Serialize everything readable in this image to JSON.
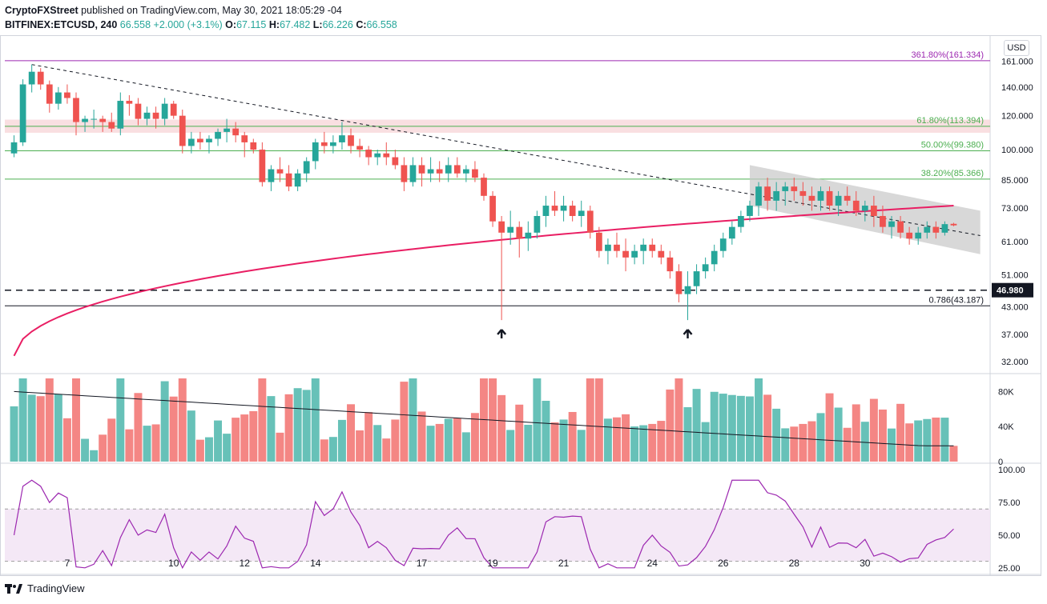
{
  "header": {
    "publisher": "CryptoFXStreet",
    "published_text": " published on TradingView.com, May 30, 2021 18:05:29 -04",
    "symbol": "BITFINEX:ETCUSD, 240",
    "last": "66.558",
    "change": "+2.000 (+3.1%)",
    "o_label": "O:",
    "o": "67.115",
    "h_label": "H:",
    "h": "67.482",
    "l_label": "L:",
    "l": "66.226",
    "c_label": "C:",
    "c": "66.558"
  },
  "currency_label": "USD",
  "footer": {
    "brand": "TradingView"
  },
  "colors": {
    "up": "#26a69a",
    "down": "#ef5350",
    "sma": "#e91e63",
    "fib_purple": "#9c27b0",
    "fib_green": "#4caf50",
    "rsi": "#9c27b0",
    "channel": "#c8c8c8",
    "volume_ma": "#131722"
  },
  "chart_data": {
    "type": "candlestick",
    "y_axis_scale": "log",
    "price_ticks": [
      "161.000",
      "140.000",
      "120.000",
      "100.000",
      "85.000",
      "73.000",
      "61.000",
      "51.000",
      "43.000",
      "37.000",
      "32.000"
    ],
    "x_tick_labels": [
      "7",
      "10",
      "12",
      "14",
      "17",
      "19",
      "21",
      "24",
      "26",
      "28",
      "30"
    ],
    "fib_levels": [
      {
        "label": "361.80%(161.334)",
        "value": 161.334,
        "color": "#9c27b0"
      },
      {
        "label": "61.80%(113.394)",
        "value": 113.394,
        "color": "#4caf50",
        "band": [
          109.5,
          117.5
        ]
      },
      {
        "label": "50.00%(99.380)",
        "value": 99.38,
        "color": "#4caf50"
      },
      {
        "label": "38.20%(85.366)",
        "value": 85.366,
        "color": "#4caf50"
      },
      {
        "label": "0.786(43.187)",
        "value": 43.187,
        "color": "#131722"
      }
    ],
    "support_level": {
      "value": 46.98,
      "label": "46.980"
    },
    "candles": [
      [
        98,
        108,
        96,
        104
      ],
      [
        104,
        146,
        102,
        142
      ],
      [
        142,
        158,
        136,
        152
      ],
      [
        152,
        155,
        138,
        142
      ],
      [
        142,
        145,
        122,
        128
      ],
      [
        128,
        140,
        124,
        136
      ],
      [
        136,
        142,
        128,
        132
      ],
      [
        132,
        136,
        108,
        116
      ],
      [
        116,
        120,
        110,
        118
      ],
      [
        118,
        124,
        112,
        118
      ],
      [
        118,
        120,
        110,
        116
      ],
      [
        116,
        122,
        110,
        112
      ],
      [
        112,
        136,
        108,
        130
      ],
      [
        130,
        134,
        120,
        128
      ],
      [
        128,
        132,
        114,
        118
      ],
      [
        118,
        126,
        114,
        122
      ],
      [
        122,
        126,
        112,
        118
      ],
      [
        118,
        132,
        114,
        128
      ],
      [
        128,
        130,
        118,
        120
      ],
      [
        120,
        124,
        98,
        102
      ],
      [
        102,
        110,
        98,
        106
      ],
      [
        106,
        110,
        100,
        104
      ],
      [
        104,
        108,
        98,
        106
      ],
      [
        106,
        112,
        102,
        110
      ],
      [
        110,
        118,
        104,
        112
      ],
      [
        112,
        116,
        104,
        108
      ],
      [
        108,
        110,
        96,
        104
      ],
      [
        104,
        106,
        98,
        100
      ],
      [
        100,
        104,
        82,
        84
      ],
      [
        84,
        92,
        80,
        90
      ],
      [
        90,
        96,
        84,
        88
      ],
      [
        88,
        92,
        80,
        82
      ],
      [
        82,
        90,
        80,
        88
      ],
      [
        88,
        96,
        84,
        94
      ],
      [
        94,
        106,
        90,
        104
      ],
      [
        104,
        110,
        98,
        102
      ],
      [
        102,
        108,
        98,
        104
      ],
      [
        104,
        116,
        100,
        108
      ],
      [
        108,
        112,
        98,
        102
      ],
      [
        102,
        106,
        96,
        100
      ],
      [
        100,
        102,
        92,
        96
      ],
      [
        96,
        100,
        92,
        98
      ],
      [
        98,
        104,
        92,
        96
      ],
      [
        96,
        100,
        90,
        92
      ],
      [
        92,
        96,
        80,
        84
      ],
      [
        84,
        96,
        82,
        92
      ],
      [
        92,
        96,
        82,
        88
      ],
      [
        88,
        96,
        84,
        90
      ],
      [
        90,
        94,
        84,
        88
      ],
      [
        88,
        96,
        84,
        92
      ],
      [
        92,
        96,
        86,
        88
      ],
      [
        88,
        92,
        84,
        90
      ],
      [
        90,
        94,
        84,
        86
      ],
      [
        86,
        88,
        76,
        78
      ],
      [
        78,
        80,
        66,
        68
      ],
      [
        68,
        70,
        40,
        64
      ],
      [
        64,
        72,
        60,
        66
      ],
      [
        66,
        68,
        56,
        62
      ],
      [
        62,
        68,
        58,
        64
      ],
      [
        64,
        72,
        62,
        70
      ],
      [
        70,
        78,
        66,
        74
      ],
      [
        74,
        80,
        70,
        72
      ],
      [
        72,
        78,
        68,
        74
      ],
      [
        74,
        76,
        68,
        70
      ],
      [
        70,
        76,
        66,
        72
      ],
      [
        72,
        74,
        62,
        64
      ],
      [
        64,
        66,
        56,
        58
      ],
      [
        58,
        62,
        54,
        60
      ],
      [
        60,
        64,
        56,
        58
      ],
      [
        58,
        62,
        52,
        56
      ],
      [
        56,
        60,
        54,
        58
      ],
      [
        58,
        62,
        54,
        60
      ],
      [
        60,
        62,
        56,
        58
      ],
      [
        58,
        60,
        54,
        56
      ],
      [
        56,
        58,
        50,
        52
      ],
      [
        52,
        54,
        44,
        46
      ],
      [
        46,
        52,
        40,
        48
      ],
      [
        48,
        54,
        46,
        52
      ],
      [
        52,
        56,
        50,
        54
      ],
      [
        54,
        60,
        52,
        58
      ],
      [
        58,
        64,
        56,
        62
      ],
      [
        62,
        68,
        60,
        66
      ],
      [
        66,
        72,
        64,
        70
      ],
      [
        70,
        76,
        68,
        74
      ],
      [
        74,
        84,
        70,
        82
      ],
      [
        82,
        86,
        72,
        76
      ],
      [
        76,
        84,
        72,
        80
      ],
      [
        80,
        84,
        74,
        82
      ],
      [
        82,
        86,
        76,
        80
      ],
      [
        80,
        84,
        74,
        78
      ],
      [
        78,
        82,
        72,
        76
      ],
      [
        76,
        82,
        72,
        80
      ],
      [
        80,
        82,
        72,
        74
      ],
      [
        74,
        80,
        70,
        78
      ],
      [
        78,
        82,
        74,
        76
      ],
      [
        76,
        80,
        70,
        72
      ],
      [
        72,
        76,
        68,
        74
      ],
      [
        74,
        78,
        66,
        70
      ],
      [
        70,
        74,
        64,
        66
      ],
      [
        66,
        70,
        62,
        68
      ],
      [
        68,
        70,
        62,
        64
      ],
      [
        64,
        66,
        60,
        62
      ],
      [
        62,
        66,
        60,
        64
      ],
      [
        64,
        68,
        62,
        66
      ],
      [
        66,
        68,
        62,
        64
      ],
      [
        64,
        68,
        63,
        67
      ],
      [
        67.115,
        67.482,
        66.226,
        66.558
      ]
    ],
    "volume_scale_ticks": [
      "80K",
      "40K",
      "0"
    ],
    "rsi_ticks": [
      "100.00",
      "75.00",
      "50.00",
      "25.00"
    ],
    "rsi_band": [
      70,
      30
    ],
    "arrows_at_candle_index": [
      55,
      76
    ]
  }
}
